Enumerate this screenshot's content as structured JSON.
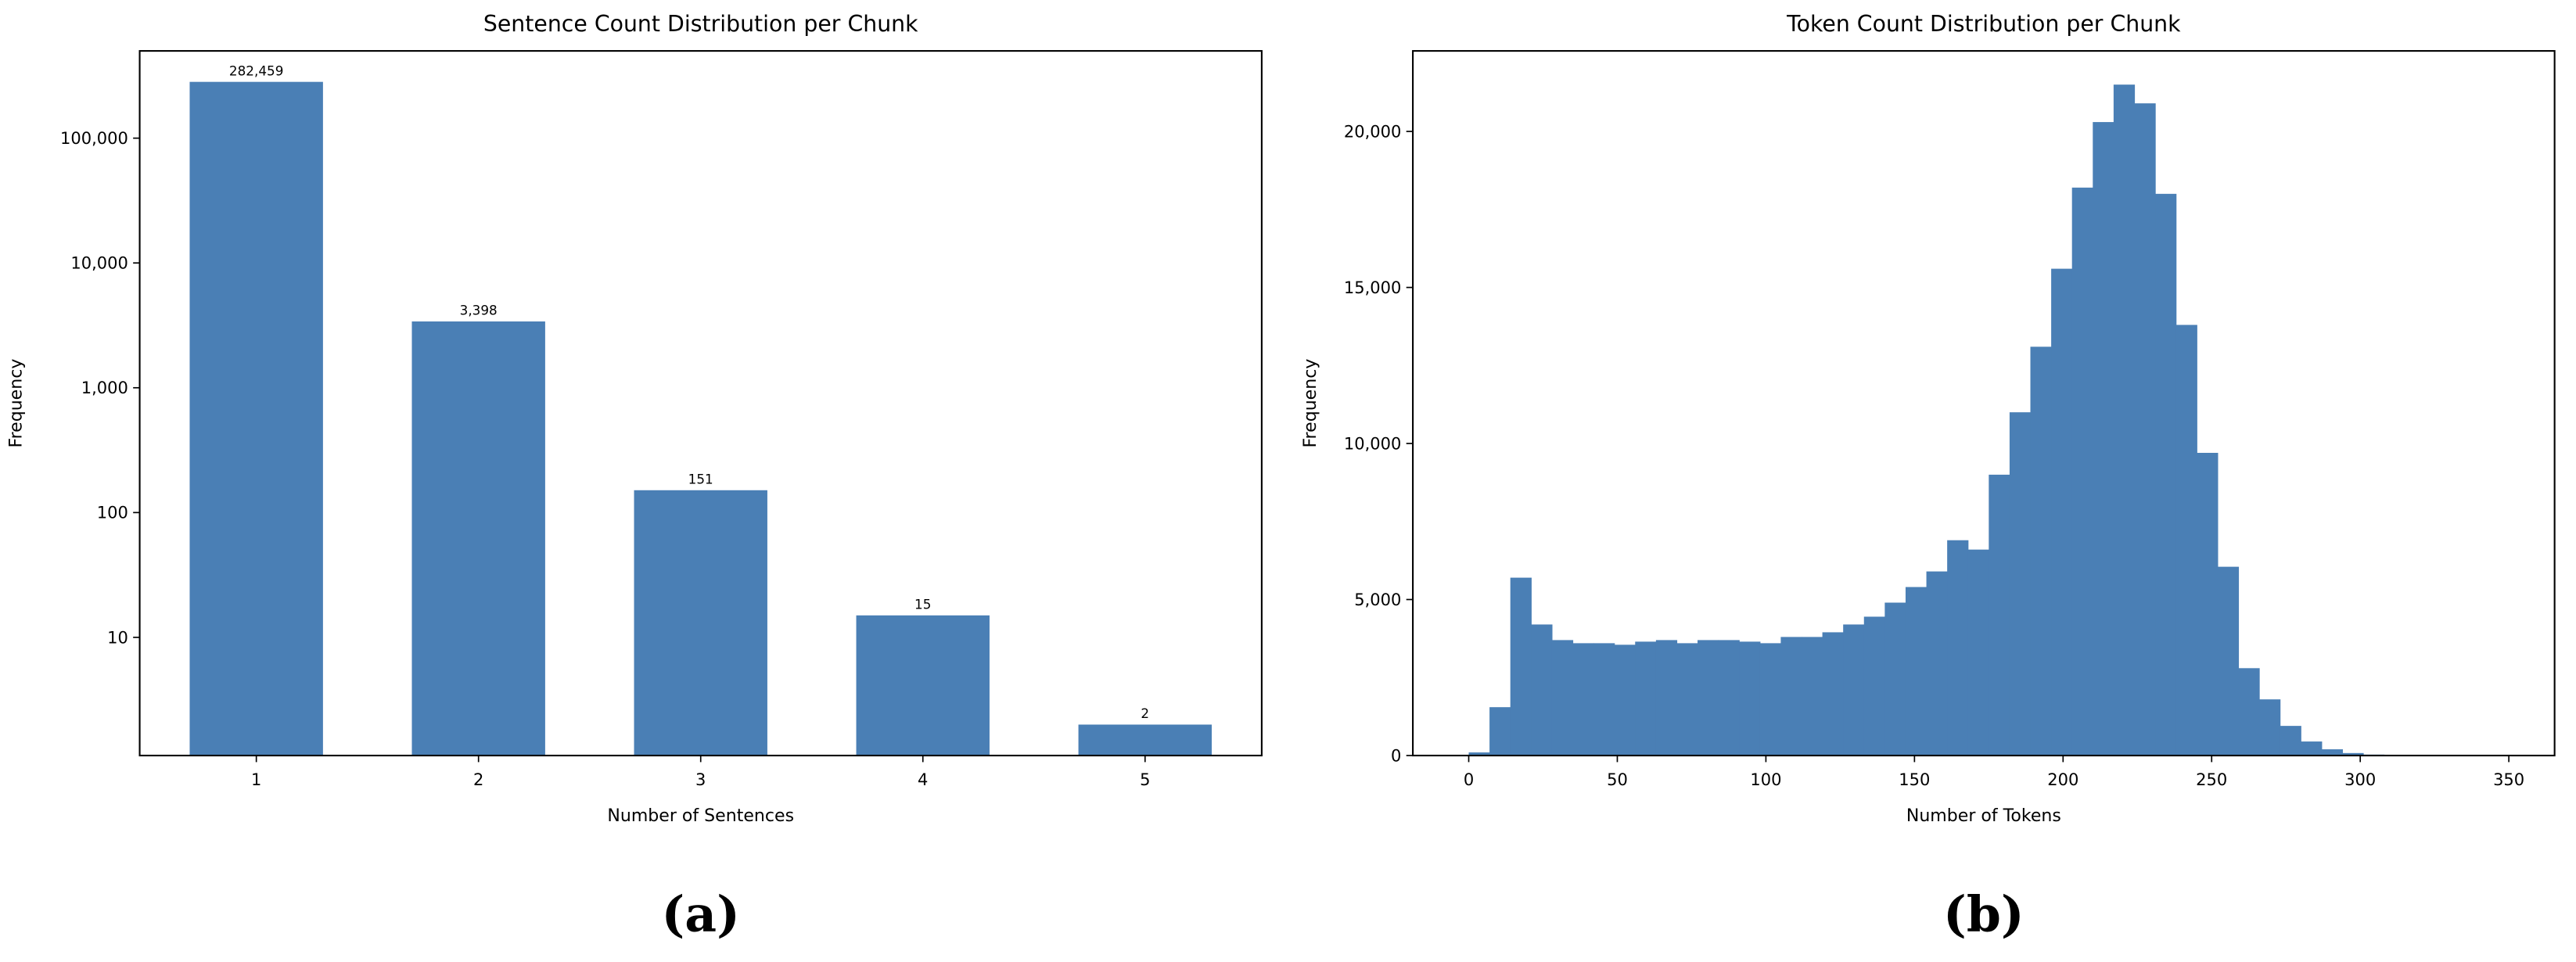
{
  "chart_data": [
    {
      "type": "bar",
      "title": "Sentence Count Distribution per Chunk",
      "label": "(a)",
      "xlabel": "Number of Sentences",
      "ylabel": "Frequency",
      "x": [
        1,
        2,
        3,
        4,
        5
      ],
      "values": [
        282459,
        3398,
        151,
        15,
        2
      ],
      "value_labels": [
        "282,459",
        "3,398",
        "151",
        "15",
        "2"
      ],
      "color": "#4a7fb5",
      "log_y": true,
      "xlim": [
        0.475,
        5.525
      ],
      "xticks": [
        1,
        2,
        3,
        4,
        5
      ],
      "ylim": [
        1.13,
        500000
      ],
      "yticks": [
        10,
        100,
        {
          "value": 1000,
          "label": "1,000"
        },
        {
          "value": 10000,
          "label": "10,000"
        },
        {
          "value": 100000,
          "label": "100,000"
        }
      ]
    },
    {
      "type": "histogram",
      "title": "Token Count Distribution per Chunk",
      "label": "(b)",
      "xlabel": "Number of Tokens",
      "ylabel": "Frequency",
      "bins": [
        0,
        7,
        14,
        21,
        28,
        35,
        42,
        49,
        56,
        63,
        70,
        77,
        84,
        91,
        98,
        105,
        112,
        119,
        126,
        133,
        140,
        147,
        154,
        161,
        168,
        175,
        182,
        189,
        196,
        203,
        210,
        217,
        224,
        231,
        238,
        245,
        252,
        259,
        266,
        273,
        280,
        287,
        294,
        301,
        308,
        315,
        322,
        329,
        336,
        343,
        350
      ],
      "values": [
        100,
        1550,
        5700,
        4200,
        3700,
        3600,
        3600,
        3550,
        3650,
        3700,
        3600,
        3700,
        3700,
        3650,
        3600,
        3800,
        3800,
        3950,
        4200,
        4450,
        4900,
        5400,
        5900,
        6900,
        6600,
        9000,
        11000,
        13100,
        15600,
        18200,
        20300,
        21500,
        20900,
        18000,
        13800,
        9700,
        6050,
        2800,
        1800,
        950,
        450,
        200,
        80,
        30,
        10,
        5,
        3,
        2,
        1,
        1
      ],
      "color": "#4a7fb5",
      "xlim": [
        -18.8,
        365.4
      ],
      "xticks": [
        0,
        50,
        100,
        150,
        200,
        250,
        300,
        350
      ],
      "ylim": [
        0,
        22580
      ],
      "yticks": [
        0,
        {
          "value": 5000,
          "label": "5,000"
        },
        {
          "value": 10000,
          "label": "10,000"
        },
        {
          "value": 15000,
          "label": "15,000"
        },
        {
          "value": 20000,
          "label": "20,000"
        }
      ]
    }
  ]
}
